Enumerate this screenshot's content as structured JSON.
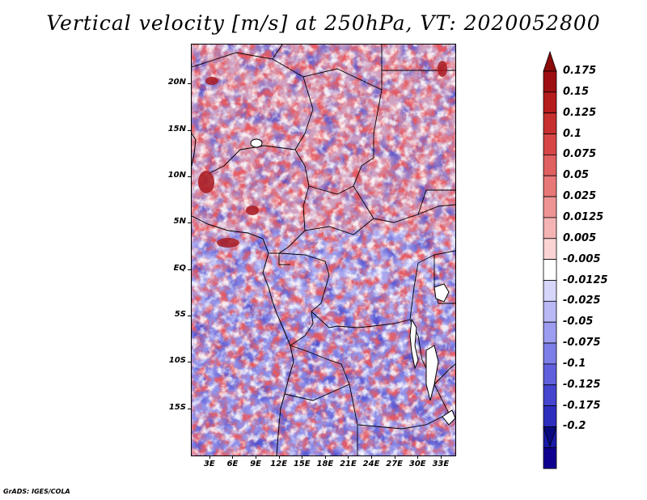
{
  "title": "Vertical velocity [m/s] at 250hPa, VT: 2020052800",
  "footer": "GrADS: IGES/COLA",
  "map": {
    "field": "vertical velocity",
    "level": "250hPa",
    "valid_time": "2020052800",
    "lat_ticks": [
      "20N",
      "15N",
      "10N",
      "5N",
      "EQ",
      "5S",
      "10S",
      "15S"
    ],
    "lat_values": [
      20,
      15,
      10,
      5,
      0,
      -5,
      -10,
      -15
    ],
    "lon_ticks": [
      "3E",
      "6E",
      "9E",
      "12E",
      "15E",
      "18E",
      "21E",
      "24E",
      "27E",
      "30E",
      "33E"
    ],
    "lon_values": [
      3,
      6,
      9,
      12,
      15,
      18,
      21,
      24,
      27,
      30,
      33
    ],
    "features": [
      "country-borders",
      "coastlines",
      "lakes"
    ]
  },
  "colorbar": {
    "labels": [
      "0.175",
      "0.15",
      "0.125",
      "0.1",
      "0.075",
      "0.05",
      "0.025",
      "0.0125",
      "0.005",
      "-0.005",
      "-0.0125",
      "-0.025",
      "-0.05",
      "-0.075",
      "-0.1",
      "-0.125",
      "-0.175",
      "-0.2"
    ],
    "colors": [
      "#9e0f12",
      "#b51c1c",
      "#c83030",
      "#d74646",
      "#e06060",
      "#e87878",
      "#ef9494",
      "#f5b4b4",
      "#fad4d4",
      "#ffffff",
      "#d6d6fa",
      "#b8b8f5",
      "#9c9cf0",
      "#7e7ee8",
      "#6060dc",
      "#4545cf",
      "#2e2ebe",
      "#1a1aa8",
      "#100090"
    ],
    "top_arrow_color": "#8b0a0a",
    "bottom_arrow_color": "#0a0a80"
  }
}
